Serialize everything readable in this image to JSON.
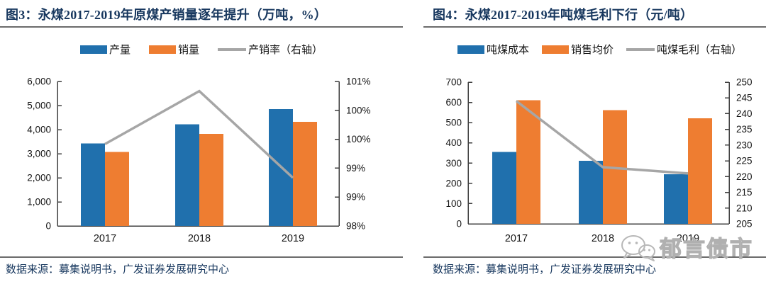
{
  "watermark": {
    "text": "郁言债市",
    "icon": "wechat-icon",
    "color": "#b8b8b8"
  },
  "panels": [
    {
      "source": "数据来源：募集说明书，广发证券发展研究中心"
    },
    {
      "source": "数据来源：募集说明书，广发证券发展研究中心"
    }
  ],
  "colors": {
    "title_navy": "#17375E",
    "bar_blue": "#2070AD",
    "bar_orange": "#EE7D31",
    "line_gray": "#A6A6A6",
    "axis": "#3f3f3f"
  },
  "chart_data": [
    {
      "type": "bar+line",
      "title": "图3：永煤2017-2019年原煤产销量逐年提升（万吨，%）",
      "categories": [
        "2017",
        "2018",
        "2019"
      ],
      "series": [
        {
          "name": "产量",
          "type": "bar",
          "axis": "left",
          "color": "#2070AD",
          "values": [
            3420,
            4220,
            4860
          ]
        },
        {
          "name": "销量",
          "type": "bar",
          "axis": "left",
          "color": "#EE7D31",
          "values": [
            3070,
            3820,
            4330
          ]
        },
        {
          "name": "产销率（右轴）",
          "type": "line",
          "axis": "right",
          "color": "#A6A6A6",
          "values": [
            99.7,
            100.8,
            99.0
          ]
        }
      ],
      "left_axis": {
        "min": 0,
        "max": 6000,
        "tick_labels": [
          "6,000",
          "5,000",
          "4,000",
          "3,000",
          "2,000",
          "1,000",
          "0"
        ]
      },
      "right_axis": {
        "min": 98,
        "max": 101,
        "tick_labels": [
          "101%",
          "100%",
          "100%",
          "99%",
          "99%",
          "98%"
        ]
      },
      "grid": false,
      "legend_position": "top"
    },
    {
      "type": "bar+line",
      "title": "图4：永煤2017-2019年吨煤毛利下行（元/吨）",
      "categories": [
        "2017",
        "2018",
        "2019"
      ],
      "series": [
        {
          "name": "吨煤成本",
          "type": "bar",
          "axis": "left",
          "color": "#2070AD",
          "values": [
            355,
            312,
            245
          ]
        },
        {
          "name": "销售均价",
          "type": "bar",
          "axis": "left",
          "color": "#EE7D31",
          "values": [
            610,
            562,
            522
          ]
        },
        {
          "name": "吨煤毛利（右轴）",
          "type": "line",
          "axis": "right",
          "color": "#A6A6A6",
          "values": [
            244,
            223,
            221
          ]
        }
      ],
      "left_axis": {
        "min": 0,
        "max": 700,
        "tick_labels": [
          "700",
          "600",
          "500",
          "400",
          "300",
          "200",
          "100",
          "0"
        ]
      },
      "right_axis": {
        "min": 205,
        "max": 250,
        "tick_labels": [
          "250",
          "245",
          "240",
          "235",
          "230",
          "225",
          "220",
          "215",
          "210",
          "205"
        ]
      },
      "grid": false,
      "legend_position": "top"
    }
  ]
}
